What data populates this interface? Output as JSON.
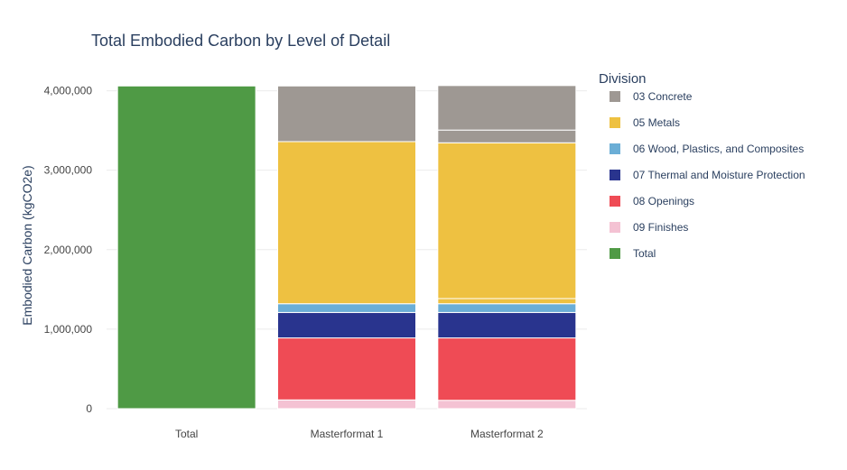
{
  "chart_data": {
    "type": "bar",
    "stacked": true,
    "title": "Total Embodied Carbon by Level of Detail",
    "xlabel": "",
    "ylabel": "Embodied Carbon (kgCO2e)",
    "ylim": [
      0,
      4120000
    ],
    "yticks": [
      "0",
      "1,000,000",
      "2,000,000",
      "3,000,000",
      "4,000,000"
    ],
    "ytick_values": [
      0,
      1000000,
      2000000,
      3000000,
      4000000
    ],
    "categories": [
      "Total",
      "Masterformat 1",
      "Masterformat 2"
    ],
    "grid": true,
    "legend_title": "Division",
    "legend_position": "right",
    "series": [
      {
        "name": "09 Finishes",
        "color": "#f4c2d3",
        "segments": [
          {
            "category": "Masterformat 1",
            "values": [
              110000
            ]
          },
          {
            "category": "Masterformat 2",
            "values": [
              105000
            ]
          }
        ]
      },
      {
        "name": "08 Openings",
        "color": "#ef4b55",
        "segments": [
          {
            "category": "Masterformat 1",
            "values": [
              780000
            ]
          },
          {
            "category": "Masterformat 2",
            "values": [
              785000
            ]
          }
        ]
      },
      {
        "name": "07 Thermal and Moisture Protection",
        "color": "#29348e",
        "segments": [
          {
            "category": "Masterformat 1",
            "values": [
              320000
            ]
          },
          {
            "category": "Masterformat 2",
            "values": [
              320000
            ]
          }
        ]
      },
      {
        "name": "06 Wood, Plastics, and Composites",
        "color": "#6baed6",
        "segments": [
          {
            "category": "Masterformat 1",
            "values": [
              110000
            ]
          },
          {
            "category": "Masterformat 2",
            "values": [
              110000
            ]
          }
        ]
      },
      {
        "name": "05 Metals",
        "color": "#eec141",
        "segments": [
          {
            "category": "Masterformat 1",
            "values": [
              2040000
            ]
          },
          {
            "category": "Masterformat 2",
            "values": [
              65000,
              1960000
            ]
          }
        ]
      },
      {
        "name": "03 Concrete",
        "color": "#9e9893",
        "segments": [
          {
            "category": "Masterformat 1",
            "values": [
              700000
            ]
          },
          {
            "category": "Masterformat 2",
            "values": [
              160000,
              560000
            ]
          }
        ]
      },
      {
        "name": "Total",
        "color": "#4f9a45",
        "segments": [
          {
            "category": "Total",
            "values": [
              4060000
            ]
          }
        ]
      }
    ],
    "legend_order": [
      "03 Concrete",
      "05 Metals",
      "06 Wood, Plastics, and Composites",
      "07 Thermal and Moisture Protection",
      "08 Openings",
      "09 Finishes",
      "Total"
    ]
  }
}
